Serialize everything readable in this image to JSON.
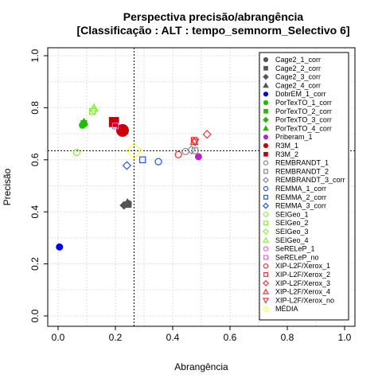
{
  "chart_data": {
    "type": "scatter",
    "title": "Perspectiva precisão/abrangência",
    "subtitle": "[Classificação : ALT : tempo_semnorm_Selectivo 6]",
    "xlabel": "Abrangência",
    "ylabel": "Precisão",
    "xlim": [
      0,
      1
    ],
    "ylim": [
      0,
      1
    ],
    "xticks": [
      "0.0",
      "0.2",
      "0.4",
      "0.6",
      "0.8",
      "1.0"
    ],
    "yticks": [
      "0.0",
      "0.2",
      "0.4",
      "0.6",
      "0.8",
      "1.0"
    ],
    "grid": true,
    "legend_position": "top-right",
    "reference_lines": {
      "x": 0.265,
      "y": 0.635
    },
    "series": [
      {
        "name": "Cage2_1_corr",
        "color": "#555555",
        "shape": "circle",
        "filled": true,
        "points": [
          [
            0.245,
            0.432
          ]
        ]
      },
      {
        "name": "Cage2_2_corr",
        "color": "#555555",
        "shape": "square",
        "filled": true,
        "points": [
          [
            0.245,
            0.428
          ]
        ]
      },
      {
        "name": "Cage2_3_corr",
        "color": "#555555",
        "shape": "diamond",
        "filled": true,
        "points": [
          [
            0.23,
            0.425
          ]
        ]
      },
      {
        "name": "Cage2_4_corr",
        "color": "#555555",
        "shape": "triangle",
        "filled": true,
        "points": [
          [
            0.242,
            0.436
          ]
        ]
      },
      {
        "name": "DobrEM_1_corr",
        "color": "#0000ee",
        "shape": "circle",
        "filled": true,
        "points": [
          [
            0.005,
            0.265
          ]
        ]
      },
      {
        "name": "PorTexTO_1_corr",
        "color": "#22bb00",
        "shape": "circle",
        "filled": true,
        "points": [
          [
            0.085,
            0.733
          ]
        ]
      },
      {
        "name": "PorTexTO_2_corr",
        "color": "#22bb00",
        "shape": "square",
        "filled": true,
        "points": [
          [
            0.09,
            0.74
          ]
        ]
      },
      {
        "name": "PorTexTO_3_corr",
        "color": "#22bb00",
        "shape": "diamond",
        "filled": true,
        "points": [
          [
            0.09,
            0.738
          ]
        ]
      },
      {
        "name": "PorTexTO_4_corr",
        "color": "#22bb00",
        "shape": "triangle",
        "filled": true,
        "points": [
          [
            0.09,
            0.745
          ]
        ]
      },
      {
        "name": "Priberam_1",
        "color": "#bb22cc",
        "shape": "circle",
        "filled": true,
        "points": [
          [
            0.49,
            0.612
          ]
        ]
      },
      {
        "name": "R3M_1",
        "color": "#cc0000",
        "shape": "circle",
        "filled": true,
        "points": [
          [
            0.225,
            0.713
          ]
        ]
      },
      {
        "name": "R3M_2",
        "color": "#cc0000",
        "shape": "square",
        "filled": true,
        "points": [
          [
            0.195,
            0.745
          ]
        ]
      },
      {
        "name": "REMBRANDT_1",
        "color": "#888888",
        "shape": "circle",
        "filled": false,
        "points": [
          [
            0.445,
            0.632
          ]
        ]
      },
      {
        "name": "REMBRANDT_2",
        "color": "#888888",
        "shape": "square",
        "filled": false,
        "points": [
          [
            0.478,
            0.635
          ]
        ]
      },
      {
        "name": "REMBRANDT_3_corr",
        "color": "#888888",
        "shape": "diamond",
        "filled": false,
        "points": [
          [
            0.465,
            0.638
          ]
        ]
      },
      {
        "name": "REMMA_1_corr",
        "color": "#2255ee",
        "shape": "circle",
        "filled": false,
        "points": [
          [
            0.35,
            0.593
          ]
        ]
      },
      {
        "name": "REMMA_2_corr",
        "color": "#2255ee",
        "shape": "square",
        "filled": false,
        "points": [
          [
            0.295,
            0.6
          ]
        ]
      },
      {
        "name": "REMMA_3_corr",
        "color": "#2255ee",
        "shape": "diamond",
        "filled": false,
        "points": [
          [
            0.24,
            0.578
          ]
        ]
      },
      {
        "name": "SEIGeo_1",
        "color": "#88ee33",
        "shape": "circle",
        "filled": false,
        "points": [
          [
            0.065,
            0.628
          ]
        ]
      },
      {
        "name": "SEIGeo_2",
        "color": "#88ee33",
        "shape": "square",
        "filled": false,
        "points": [
          [
            0.12,
            0.785
          ]
        ]
      },
      {
        "name": "SEIGeo_3",
        "color": "#88ee33",
        "shape": "diamond",
        "filled": false,
        "points": [
          [
            0.125,
            0.79
          ]
        ]
      },
      {
        "name": "SEIGeo_4",
        "color": "#88ee33",
        "shape": "triangle",
        "filled": false,
        "points": [
          [
            0.125,
            0.8
          ]
        ]
      },
      {
        "name": "SeRELeP_1",
        "color": "#ff55dd",
        "shape": "circle",
        "filled": false,
        "points": []
      },
      {
        "name": "SeRELeP_no",
        "color": "#ff55dd",
        "shape": "square",
        "filled": false,
        "points": [
          [
            0.2,
            0.73
          ]
        ]
      },
      {
        "name": "XIP-L2F/Xerox_1",
        "color": "#ee3333",
        "shape": "circle",
        "filled": false,
        "points": [
          [
            0.42,
            0.62
          ]
        ]
      },
      {
        "name": "XIP-L2F/Xerox_2",
        "color": "#ee3333",
        "shape": "square",
        "filled": false,
        "points": [
          [
            0.475,
            0.675
          ]
        ]
      },
      {
        "name": "XIP-L2F/Xerox_3",
        "color": "#ee3333",
        "shape": "diamond",
        "filled": false,
        "points": [
          [
            0.52,
            0.698
          ]
        ]
      },
      {
        "name": "XIP-L2F/Xerox_4",
        "color": "#ee3333",
        "shape": "triangle",
        "filled": false,
        "points": [
          [
            0.475,
            0.67
          ]
        ]
      },
      {
        "name": "XIP-L2F/Xerox_no",
        "color": "#ee3333",
        "shape": "triangle-down",
        "filled": false,
        "points": [
          [
            0.478,
            0.668
          ]
        ]
      },
      {
        "name": "MÉDIA",
        "color": "#ffff33",
        "shape": "diamond",
        "filled": false,
        "points": [
          [
            0.265,
            0.635
          ]
        ]
      }
    ]
  }
}
